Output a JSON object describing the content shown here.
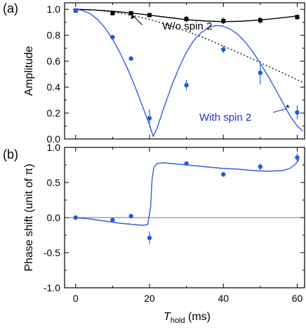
{
  "chart_data": [
    {
      "panel": "(a)",
      "type": "scatter",
      "ylabel": "Amplitude",
      "xlim": [
        -3,
        62
      ],
      "ylim": [
        0,
        1.05
      ],
      "yticks": [
        "0.0",
        "0.2",
        "0.4",
        "0.6",
        "0.8",
        "1.0"
      ],
      "yticks_values": [
        0.0,
        0.2,
        0.4,
        0.6,
        0.8,
        1.0
      ],
      "xticks_values": [
        0,
        20,
        40,
        60
      ],
      "annotations": [
        {
          "text": "W/o spin 2",
          "color": "#000000"
        },
        {
          "text": "With spin 2",
          "color": "#1f2fd1"
        }
      ],
      "series": [
        {
          "name": "W/o spin 2",
          "color": "#000000",
          "marker": "square",
          "x": [
            0,
            10,
            15,
            20,
            30,
            40,
            50,
            60
          ],
          "y": [
            0.99,
            0.97,
            0.97,
            0.955,
            0.925,
            0.91,
            0.915,
            0.94
          ],
          "yerr": [
            0.01,
            0.012,
            0.01,
            0.012,
            0.025,
            0.025,
            0.025,
            0.02
          ]
        },
        {
          "name": "W/o spin 2 fit",
          "color": "#000000",
          "style": "line",
          "x": [
            0,
            5,
            10,
            15,
            20,
            25,
            30,
            35,
            40,
            45,
            50,
            55,
            60
          ],
          "y": [
            1.0,
            0.995,
            0.985,
            0.972,
            0.955,
            0.937,
            0.92,
            0.91,
            0.905,
            0.908,
            0.918,
            0.932,
            0.948
          ]
        },
        {
          "name": "Decay envelope",
          "color": "#000000",
          "style": "dotted",
          "x": [
            0,
            5,
            10,
            15,
            20,
            25,
            30,
            35,
            40,
            45,
            50,
            55,
            60,
            61.5
          ],
          "y": [
            1.0,
            0.995,
            0.98,
            0.955,
            0.922,
            0.88,
            0.832,
            0.777,
            0.717,
            0.654,
            0.589,
            0.523,
            0.457,
            0.437
          ]
        },
        {
          "name": "With spin 2",
          "color": "#1f5ae6",
          "marker": "circle",
          "x": [
            0,
            10,
            15,
            20,
            30,
            40,
            50,
            60
          ],
          "y": [
            0.99,
            0.785,
            0.62,
            0.16,
            0.415,
            0.69,
            0.51,
            0.205
          ],
          "yerr": [
            0.01,
            0.015,
            0.015,
            0.07,
            0.04,
            0.03,
            0.09,
            0.055
          ]
        },
        {
          "name": "With spin 2 fit",
          "color": "#2f5ee0",
          "style": "line",
          "x": [
            0,
            2,
            4,
            6,
            8,
            10,
            12,
            14,
            16,
            18,
            20,
            21,
            22,
            24,
            26,
            28,
            30,
            32,
            34,
            36,
            38,
            40,
            42,
            44,
            46,
            48,
            50,
            52,
            54,
            56,
            58,
            60,
            61.5
          ],
          "y": [
            1.0,
            0.99,
            0.965,
            0.92,
            0.855,
            0.77,
            0.665,
            0.545,
            0.41,
            0.26,
            0.11,
            0.02,
            0.08,
            0.25,
            0.41,
            0.55,
            0.67,
            0.76,
            0.82,
            0.86,
            0.875,
            0.87,
            0.845,
            0.805,
            0.745,
            0.67,
            0.585,
            0.49,
            0.39,
            0.285,
            0.18,
            0.1,
            0.06
          ]
        }
      ]
    },
    {
      "panel": "(b)",
      "type": "scatter",
      "xlabel_main": "T",
      "xlabel_sub": "hold",
      "xlabel_unit": " (ms)",
      "ylabel": "Phase shift (unit of π)",
      "xlim": [
        -3,
        62
      ],
      "ylim": [
        -1.0,
        1.0
      ],
      "xticks": [
        "0",
        "20",
        "40",
        "60"
      ],
      "xticks_values": [
        0,
        20,
        40,
        60
      ],
      "yticks": [
        "-1.0",
        "-0.5",
        "0.0",
        "0.5",
        "1.0"
      ],
      "yticks_values": [
        -1.0,
        -0.5,
        0.0,
        0.5,
        1.0
      ],
      "zero_line": true,
      "series": [
        {
          "name": "Phase data",
          "color": "#1f5ae6",
          "marker": "circle",
          "x": [
            0,
            10,
            15,
            20,
            30,
            40,
            50,
            60
          ],
          "y": [
            0.0,
            -0.035,
            0.02,
            -0.29,
            0.77,
            0.615,
            0.725,
            0.855
          ],
          "yerr": [
            0.0,
            0.02,
            0.02,
            0.09,
            0.025,
            0.02,
            0.05,
            0.06
          ]
        },
        {
          "name": "Phase fit",
          "color": "#2f5ee0",
          "style": "line",
          "x": [
            0,
            4,
            8,
            12,
            16,
            18,
            19.5,
            20.3,
            20.7,
            21.2,
            22,
            24,
            28,
            32,
            36,
            40,
            44,
            48,
            52,
            56,
            58,
            59.5,
            60.5
          ],
          "y": [
            0.0,
            -0.02,
            -0.05,
            -0.08,
            -0.1,
            -0.11,
            -0.1,
            0.15,
            0.55,
            0.72,
            0.77,
            0.78,
            0.76,
            0.74,
            0.72,
            0.7,
            0.69,
            0.67,
            0.66,
            0.67,
            0.7,
            0.76,
            0.83
          ]
        }
      ]
    }
  ]
}
